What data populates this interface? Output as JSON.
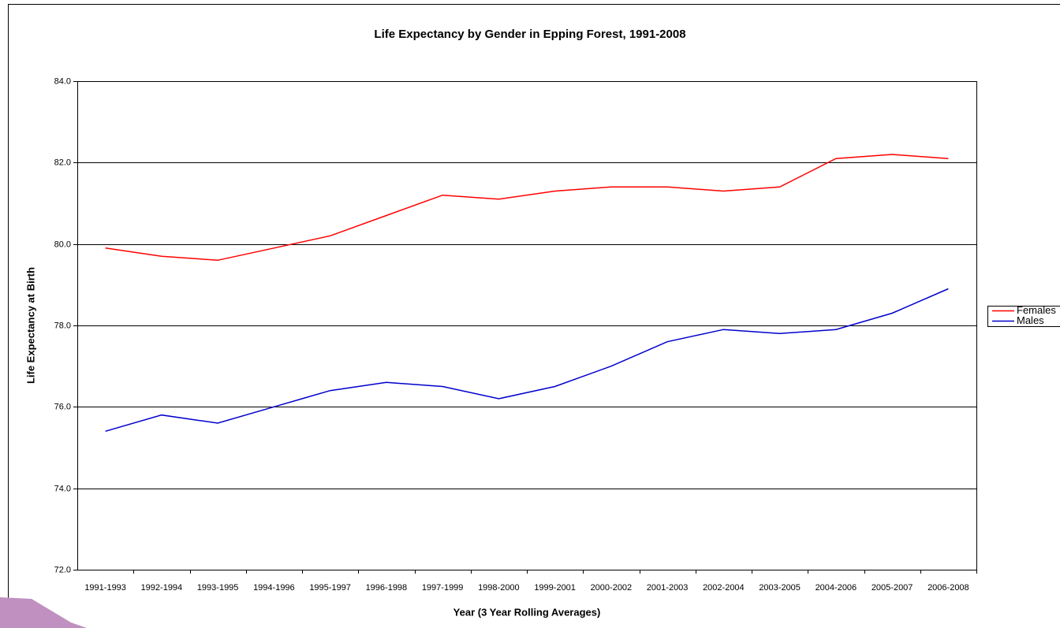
{
  "chart_data": {
    "type": "line",
    "title": "Life Expectancy by Gender in Epping Forest, 1991-2008",
    "x_label": "Year (3 Year Rolling Averages)",
    "y_label": "Life Expectancy at Birth",
    "categories": [
      "1991-1993",
      "1992-1994",
      "1993-1995",
      "1994-1996",
      "1995-1997",
      "1996-1998",
      "1997-1999",
      "1998-2000",
      "1999-2001",
      "2000-2002",
      "2001-2003",
      "2002-2004",
      "2003-2005",
      "2004-2006",
      "2005-2007",
      "2006-2008"
    ],
    "series": [
      {
        "name": "Females",
        "color": "#ff0000",
        "values": [
          79.9,
          79.7,
          79.6,
          79.9,
          80.2,
          80.7,
          81.2,
          81.1,
          81.3,
          81.4,
          81.4,
          81.3,
          81.4,
          82.1,
          82.2,
          82.1
        ]
      },
      {
        "name": "Males",
        "color": "#0000cc",
        "values": [
          75.4,
          75.8,
          75.6,
          76.0,
          76.4,
          76.6,
          76.5,
          76.2,
          76.5,
          77.0,
          77.6,
          77.9,
          77.8,
          77.9,
          78.3,
          78.9
        ]
      }
    ],
    "ylim": [
      72,
      84
    ],
    "yticks": [
      {
        "value": 72,
        "label": "72.0"
      },
      {
        "value": 74,
        "label": "74.0"
      },
      {
        "value": 76,
        "label": "76.0"
      },
      {
        "value": 78,
        "label": "78.0"
      },
      {
        "value": 80,
        "label": "80.0"
      },
      {
        "value": 82,
        "label": "82.0"
      },
      {
        "value": 84,
        "label": "84.0"
      }
    ],
    "grid": true,
    "legend": "right"
  }
}
